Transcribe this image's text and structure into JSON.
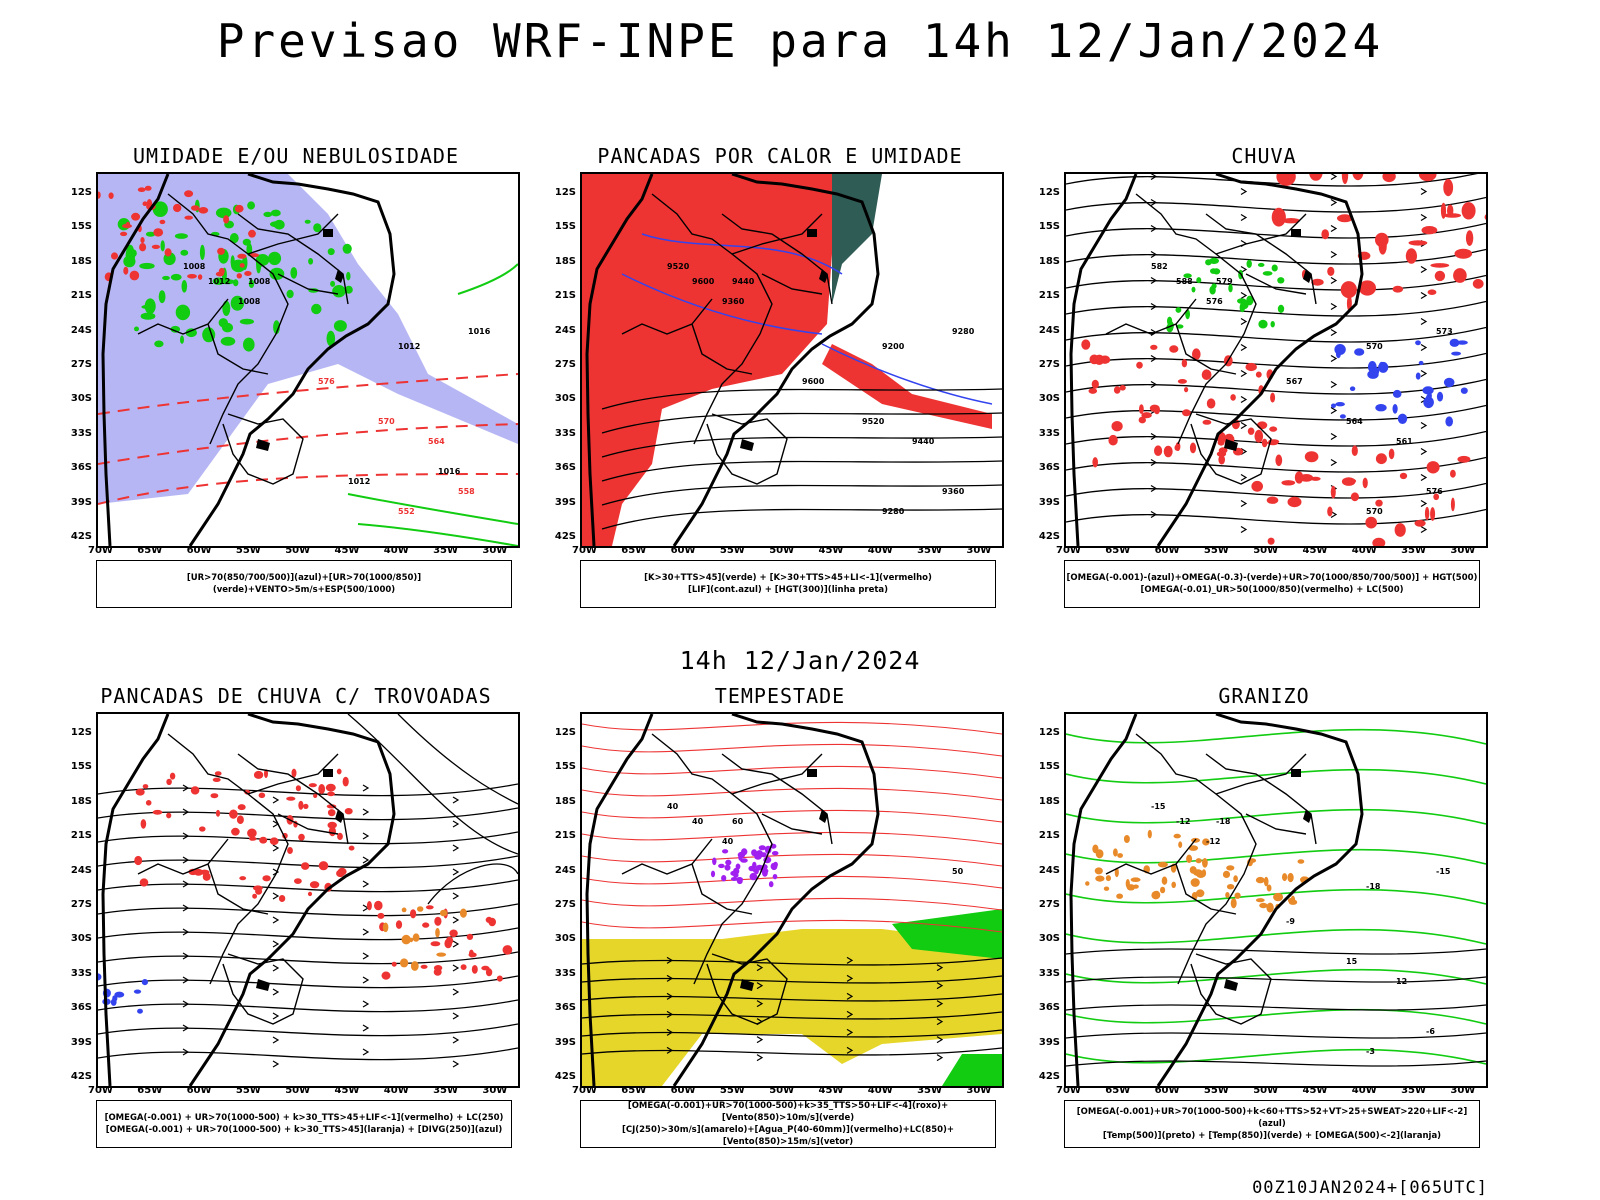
{
  "header": {
    "main_title": "Previsao WRF-INPE  para 14h 12/Jan/2024",
    "mid_title": "14h 12/Jan/2024",
    "footer": "00Z10JAN2024+[065UTC]"
  },
  "axes": {
    "lat_labels": [
      "12S",
      "15S",
      "18S",
      "21S",
      "24S",
      "27S",
      "30S",
      "33S",
      "36S",
      "39S",
      "42S"
    ],
    "lon_labels": [
      "70W",
      "65W",
      "60W",
      "55W",
      "50W",
      "45W",
      "40W",
      "35W",
      "30W"
    ]
  },
  "colors": {
    "blue": "#3344ee",
    "green": "#11cc11",
    "red": "#ee3333",
    "lavender": "#a9a9f2",
    "darkteal": "#2f5c55",
    "yellow": "#e6d62a",
    "orange": "#e88a2a"
  },
  "panels": [
    {
      "title": "UMIDADE E/OU NEBULOSIDADE",
      "legend": [
        "[UR>70(850/700/500)](azul)+[UR>70(1000/850)](verde)+VENTO>5m/s+ESP(500/1000)"
      ],
      "contour_labels": [
        "1012",
        "1008",
        "1008",
        "1008",
        "1016",
        "1012",
        "576",
        "570",
        "564",
        "558",
        "552",
        "1012",
        "1016"
      ]
    },
    {
      "title": "PANCADAS POR CALOR E UMIDADE",
      "legend": [
        "[K>30+TTS>45](verde) + [K>30+TTS>45+LI<-1](vermelho)",
        "[LIF](cont.azul) + [HGT(300)](linha preta)"
      ],
      "contour_labels": [
        "9600",
        "9520",
        "9440",
        "9360",
        "9280",
        "9200",
        "9600",
        "9520",
        "9440",
        "9360",
        "9280"
      ]
    },
    {
      "title": "CHUVA",
      "legend": [
        "[OMEGA(-0.001)-(azul)+OMEGA(-0.3)-(verde)+UR>70(1000/850/700/500)] + HGT(500)",
        "[OMEGA(-0.01)_UR>50(1000/850)(vermelho) + LC(500)"
      ],
      "contour_labels": [
        "588",
        "582",
        "579",
        "576",
        "573",
        "570",
        "567",
        "564",
        "561",
        "576",
        "570"
      ]
    },
    {
      "title": "PANCADAS DE CHUVA C/ TROVOADAS",
      "legend": [
        "[OMEGA(-0.001) + UR>70(1000-500) + k>30_TTS>45+LIF<-1](vermelho) + LC(250)",
        "[OMEGA(-0.001) + UR>70(1000-500) + k>30_TTS>45](laranja) + [DIVG(250)](azul)"
      ],
      "contour_labels": []
    },
    {
      "title": "TEMPESTADE",
      "legend": [
        "[OMEGA(-0.001)+UR>70(1000-500)+k>35_TTS>50+LIF<-4](roxo)+[Vento(850)>10m/s](verde)",
        "[CJ(250)>30m/s](amarelo)+[Agua_P(40-60mm)](vermelho)+LC(850)+[Vento(850)>15m/s](vetor)"
      ],
      "contour_labels": [
        "40",
        "40",
        "60",
        "40",
        "50"
      ]
    },
    {
      "title": "GRANIZO",
      "legend": [
        "[OMEGA(-0.001)+UR>70(1000-500)+k<60+TTS>52+VT>25+SWEAT>220+LIF<-2](azul)",
        "[Temp(500)](preto) + [Temp(850)](verde) + [OMEGA(500)<-2](laranja)"
      ],
      "contour_labels": [
        "-12",
        "-15",
        "-18",
        "-12",
        "-15",
        "-18",
        "-9",
        "15",
        "12",
        "-6",
        "-3"
      ]
    }
  ]
}
